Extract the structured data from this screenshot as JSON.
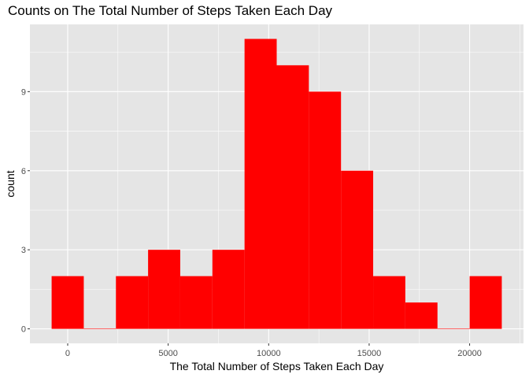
{
  "chart_data": {
    "type": "bar",
    "title": "Counts on The Total Number of Steps Taken Each Day",
    "xlabel": "The Total Number of Steps Taken Each Day",
    "ylabel": "count",
    "bin_width": 1600,
    "bins": [
      {
        "x0": -800,
        "x1": 800,
        "count": 2
      },
      {
        "x0": 800,
        "x1": 2400,
        "count": 0
      },
      {
        "x0": 2400,
        "x1": 4000,
        "count": 2
      },
      {
        "x0": 4000,
        "x1": 5600,
        "count": 3
      },
      {
        "x0": 5600,
        "x1": 7200,
        "count": 2
      },
      {
        "x0": 7200,
        "x1": 8800,
        "count": 3
      },
      {
        "x0": 8800,
        "x1": 10400,
        "count": 11
      },
      {
        "x0": 10400,
        "x1": 12000,
        "count": 10
      },
      {
        "x0": 12000,
        "x1": 13600,
        "count": 9
      },
      {
        "x0": 13600,
        "x1": 15200,
        "count": 6
      },
      {
        "x0": 15200,
        "x1": 16800,
        "count": 2
      },
      {
        "x0": 16800,
        "x1": 18400,
        "count": 1
      },
      {
        "x0": 18400,
        "x1": 20000,
        "count": 0
      },
      {
        "x0": 20000,
        "x1": 21600,
        "count": 2
      }
    ],
    "xlim": [
      -1880,
      22680
    ],
    "ylim": [
      -0.55,
      11.55
    ],
    "xticks": [
      0,
      5000,
      10000,
      15000,
      20000
    ],
    "xtick_labels": [
      "0",
      "5000",
      "10000",
      "15000",
      "20000"
    ],
    "yticks": [
      0,
      3,
      6,
      9
    ],
    "ytick_labels": [
      "0",
      "3",
      "6",
      "9"
    ],
    "grid": true,
    "colors": {
      "fill": "#ff0000",
      "panel": "#e5e5e5",
      "grid": "#ffffff"
    }
  }
}
